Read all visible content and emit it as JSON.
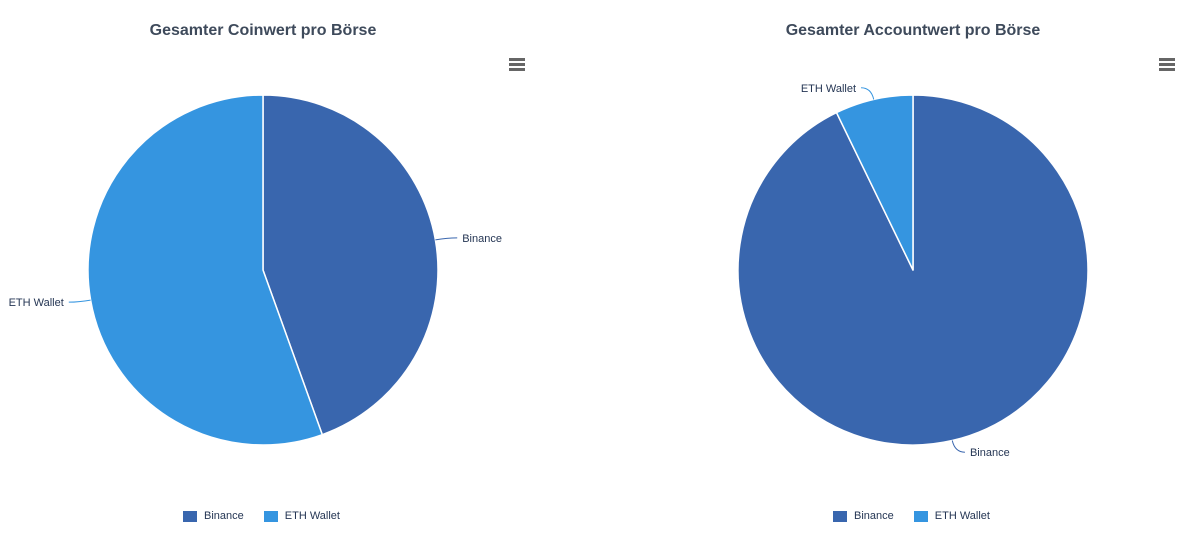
{
  "chart_data": [
    {
      "type": "pie",
      "title": "Gesamter Coinwert pro Börse",
      "menu_icon": "hamburger-menu-icon",
      "slices": [
        {
          "name": "Binance",
          "value": 44.5,
          "color": "#3966ae"
        },
        {
          "name": "ETH Wallet",
          "value": 55.5,
          "color": "#3595e0"
        }
      ],
      "legend": {
        "position": "bottom-center",
        "items": [
          "Binance",
          "ETH Wallet"
        ]
      }
    },
    {
      "type": "pie",
      "title": "Gesamter Accountwert pro Börse",
      "menu_icon": "hamburger-menu-icon",
      "slices": [
        {
          "name": "Binance",
          "value": 92.8,
          "color": "#3966ae"
        },
        {
          "name": "ETH Wallet",
          "value": 7.2,
          "color": "#3595e0"
        }
      ],
      "legend": {
        "position": "bottom-center",
        "items": [
          "Binance",
          "ETH Wallet"
        ]
      }
    }
  ]
}
